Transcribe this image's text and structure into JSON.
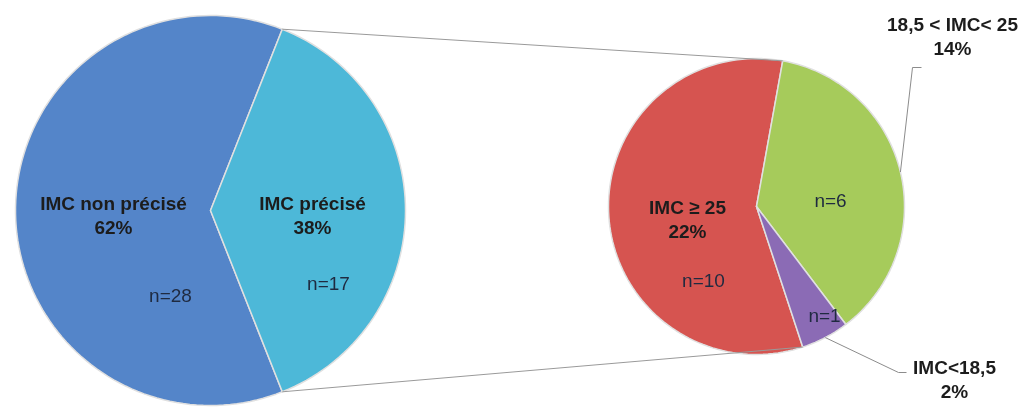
{
  "chart_data": [
    {
      "type": "pie",
      "categories": [
        "IMC non précisé",
        "IMC précisé"
      ],
      "values": [
        62,
        38
      ],
      "value_labels": [
        "62%",
        "38%"
      ],
      "colors": [
        "#5485c9",
        "#4db8d8"
      ],
      "annotations": [
        "n=28",
        "n=17"
      ]
    },
    {
      "type": "pie",
      "categories": [
        "IMC ≥ 25",
        "18,5 < IMC< 25",
        "IMC<18,5"
      ],
      "values": [
        22,
        14,
        2
      ],
      "value_labels": [
        "22%",
        "14%",
        "2%"
      ],
      "colors": [
        "#d65450",
        "#a6cb5b",
        "#8b6bb5"
      ],
      "annotations": [
        "n=10",
        "n=6",
        "n=1"
      ]
    }
  ]
}
